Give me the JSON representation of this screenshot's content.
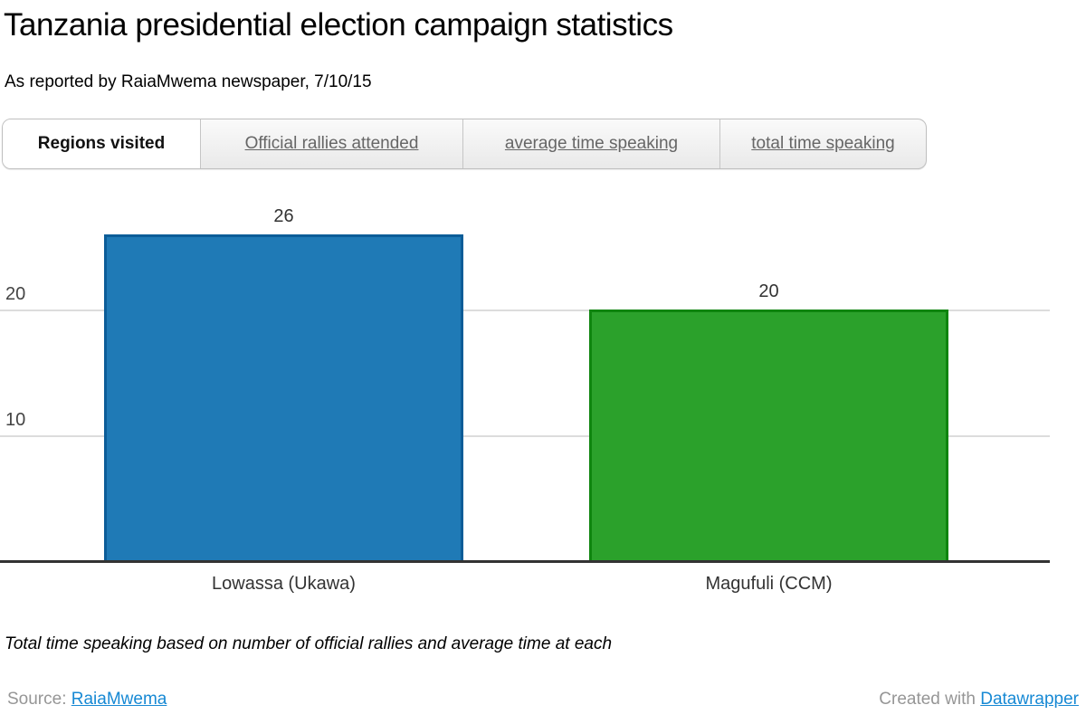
{
  "header": {
    "title": "Tanzania presidential election campaign statistics",
    "subtitle": "As reported by RaiaMwema newspaper, 7/10/15"
  },
  "tabs": [
    {
      "label": "Regions visited",
      "active": true
    },
    {
      "label": "Official rallies attended",
      "active": false
    },
    {
      "label": "average time speaking",
      "active": false
    },
    {
      "label": "total time speaking",
      "active": false
    }
  ],
  "chart_data": {
    "type": "bar",
    "title": "Regions visited",
    "categories": [
      "Lowassa (Ukawa)",
      "Magufuli (CCM)"
    ],
    "values": [
      26,
      20
    ],
    "y_ticks": [
      10,
      20
    ],
    "ylim": [
      0,
      26
    ],
    "grid": true,
    "xlabel": "",
    "ylabel": "",
    "legend": "none",
    "bar_colors": [
      "#1f7ab6",
      "#2ba12b"
    ],
    "bar_border_colors": [
      "#0c5d98",
      "#0f850f"
    ]
  },
  "note": "Total time speaking based on number of official rallies and average time at each",
  "footer": {
    "source_label": "Source:",
    "source_link": "RaiaMwema",
    "created_label": "Created with",
    "created_link": "Datawrapper"
  },
  "colors": {
    "link": "#1789d4",
    "grid": "#dcdcdc",
    "baseline": "#333333"
  }
}
